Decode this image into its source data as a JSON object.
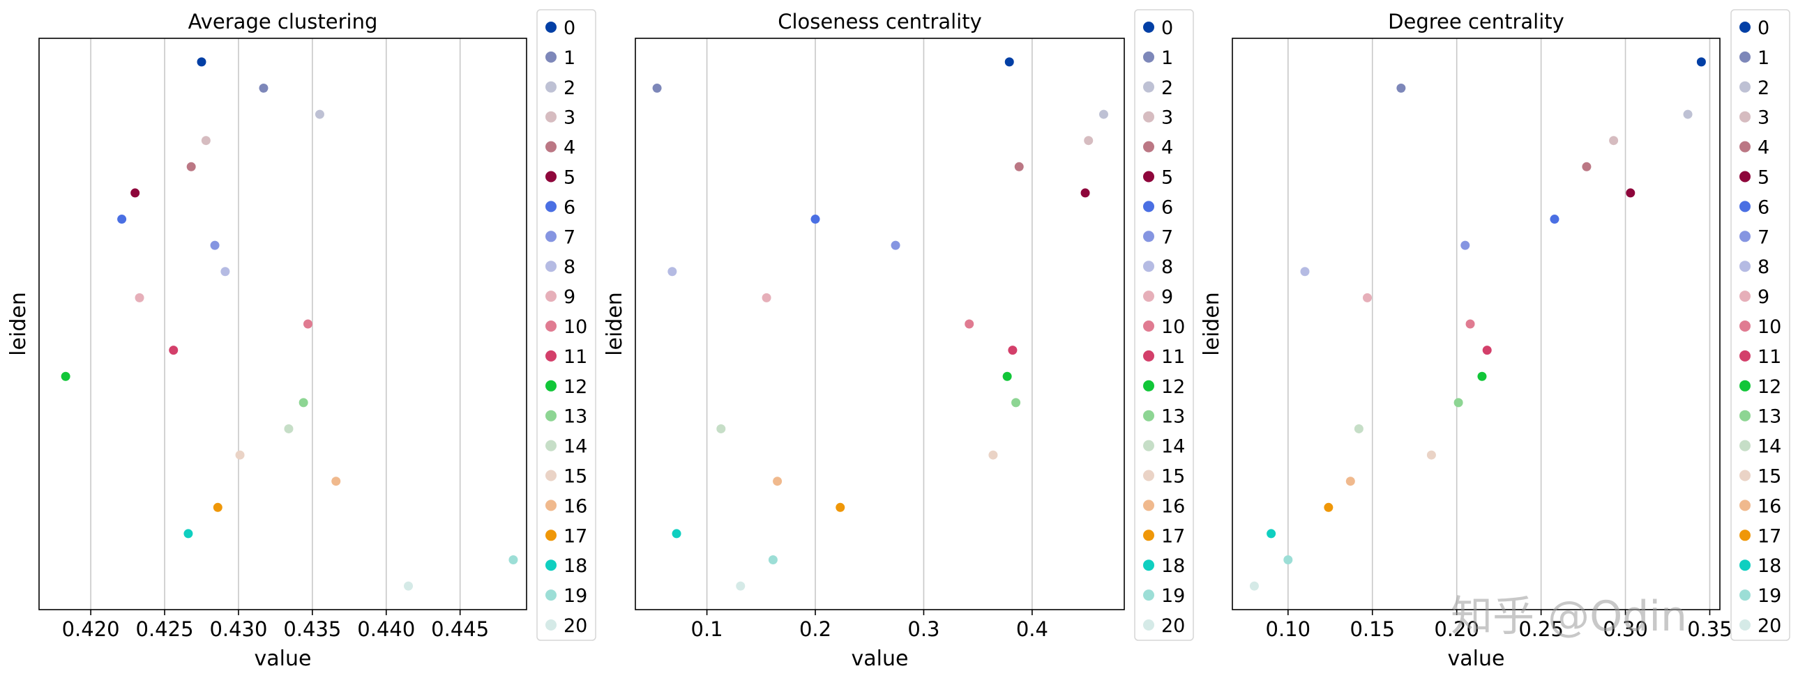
{
  "chart_data": [
    {
      "type": "scatter",
      "title": "Average clustering",
      "xlabel": "value",
      "ylabel": "leiden",
      "xlim": [
        0.4165,
        0.4495
      ],
      "xticks": [
        0.42,
        0.425,
        0.43,
        0.435,
        0.44,
        0.445
      ],
      "xtick_labels": [
        "0.420",
        "0.425",
        "0.430",
        "0.435",
        "0.440",
        "0.445"
      ],
      "grid": "x",
      "legend": "right",
      "categories": [
        "0",
        "1",
        "2",
        "3",
        "4",
        "5",
        "6",
        "7",
        "8",
        "9",
        "10",
        "11",
        "12",
        "13",
        "14",
        "15",
        "16",
        "17",
        "18",
        "19",
        "20"
      ],
      "values": [
        0.4275,
        0.4317,
        0.4355,
        0.4278,
        0.4268,
        0.423,
        0.4221,
        0.4284,
        0.4291,
        0.4233,
        0.4347,
        0.4256,
        0.4183,
        0.4344,
        0.4334,
        0.4301,
        0.4366,
        0.4286,
        0.4266,
        0.4486,
        0.4415
      ]
    },
    {
      "type": "scatter",
      "title": "Closeness centrality",
      "xlabel": "value",
      "ylabel": "leiden",
      "xlim": [
        0.034,
        0.485
      ],
      "xticks": [
        0.1,
        0.2,
        0.3,
        0.4
      ],
      "xtick_labels": [
        "0.1",
        "0.2",
        "0.3",
        "0.4"
      ],
      "grid": "x",
      "legend": "right",
      "categories": [
        "0",
        "1",
        "2",
        "3",
        "4",
        "5",
        "6",
        "7",
        "8",
        "9",
        "10",
        "11",
        "12",
        "13",
        "14",
        "15",
        "16",
        "17",
        "18",
        "19",
        "20"
      ],
      "values": [
        0.379,
        0.054,
        0.466,
        0.452,
        0.388,
        0.449,
        0.2,
        0.274,
        0.068,
        0.155,
        0.342,
        0.382,
        0.377,
        0.385,
        0.113,
        0.364,
        0.165,
        0.223,
        0.072,
        0.161,
        0.131
      ]
    },
    {
      "type": "scatter",
      "title": "Degree centrality",
      "xlabel": "value",
      "ylabel": "leiden",
      "xlim": [
        0.067,
        0.356
      ],
      "xticks": [
        0.1,
        0.15,
        0.2,
        0.25,
        0.3,
        0.35
      ],
      "xtick_labels": [
        "0.10",
        "0.15",
        "0.20",
        "0.25",
        "0.30",
        "0.35"
      ],
      "grid": "x",
      "legend": "right",
      "categories": [
        "0",
        "1",
        "2",
        "3",
        "4",
        "5",
        "6",
        "7",
        "8",
        "9",
        "10",
        "11",
        "12",
        "13",
        "14",
        "15",
        "16",
        "17",
        "18",
        "19",
        "20"
      ],
      "values": [
        0.345,
        0.167,
        0.337,
        0.293,
        0.277,
        0.303,
        0.258,
        0.205,
        0.11,
        0.147,
        0.208,
        0.218,
        0.215,
        0.201,
        0.142,
        0.185,
        0.137,
        0.124,
        0.09,
        0.1,
        0.08
      ]
    }
  ],
  "palette": [
    "#023fa5",
    "#7d87b9",
    "#bec1d4",
    "#d6bcc0",
    "#bb7784",
    "#8e063b",
    "#4a6fe3",
    "#8595e1",
    "#b5bbe3",
    "#e6afb9",
    "#e07b91",
    "#d33f6a",
    "#11c638",
    "#8dd593",
    "#c6dec7",
    "#ead3c6",
    "#f0b98d",
    "#ef9708",
    "#0fcfc0",
    "#9cded6",
    "#d5eae7"
  ],
  "watermark": "知乎 @Odin"
}
